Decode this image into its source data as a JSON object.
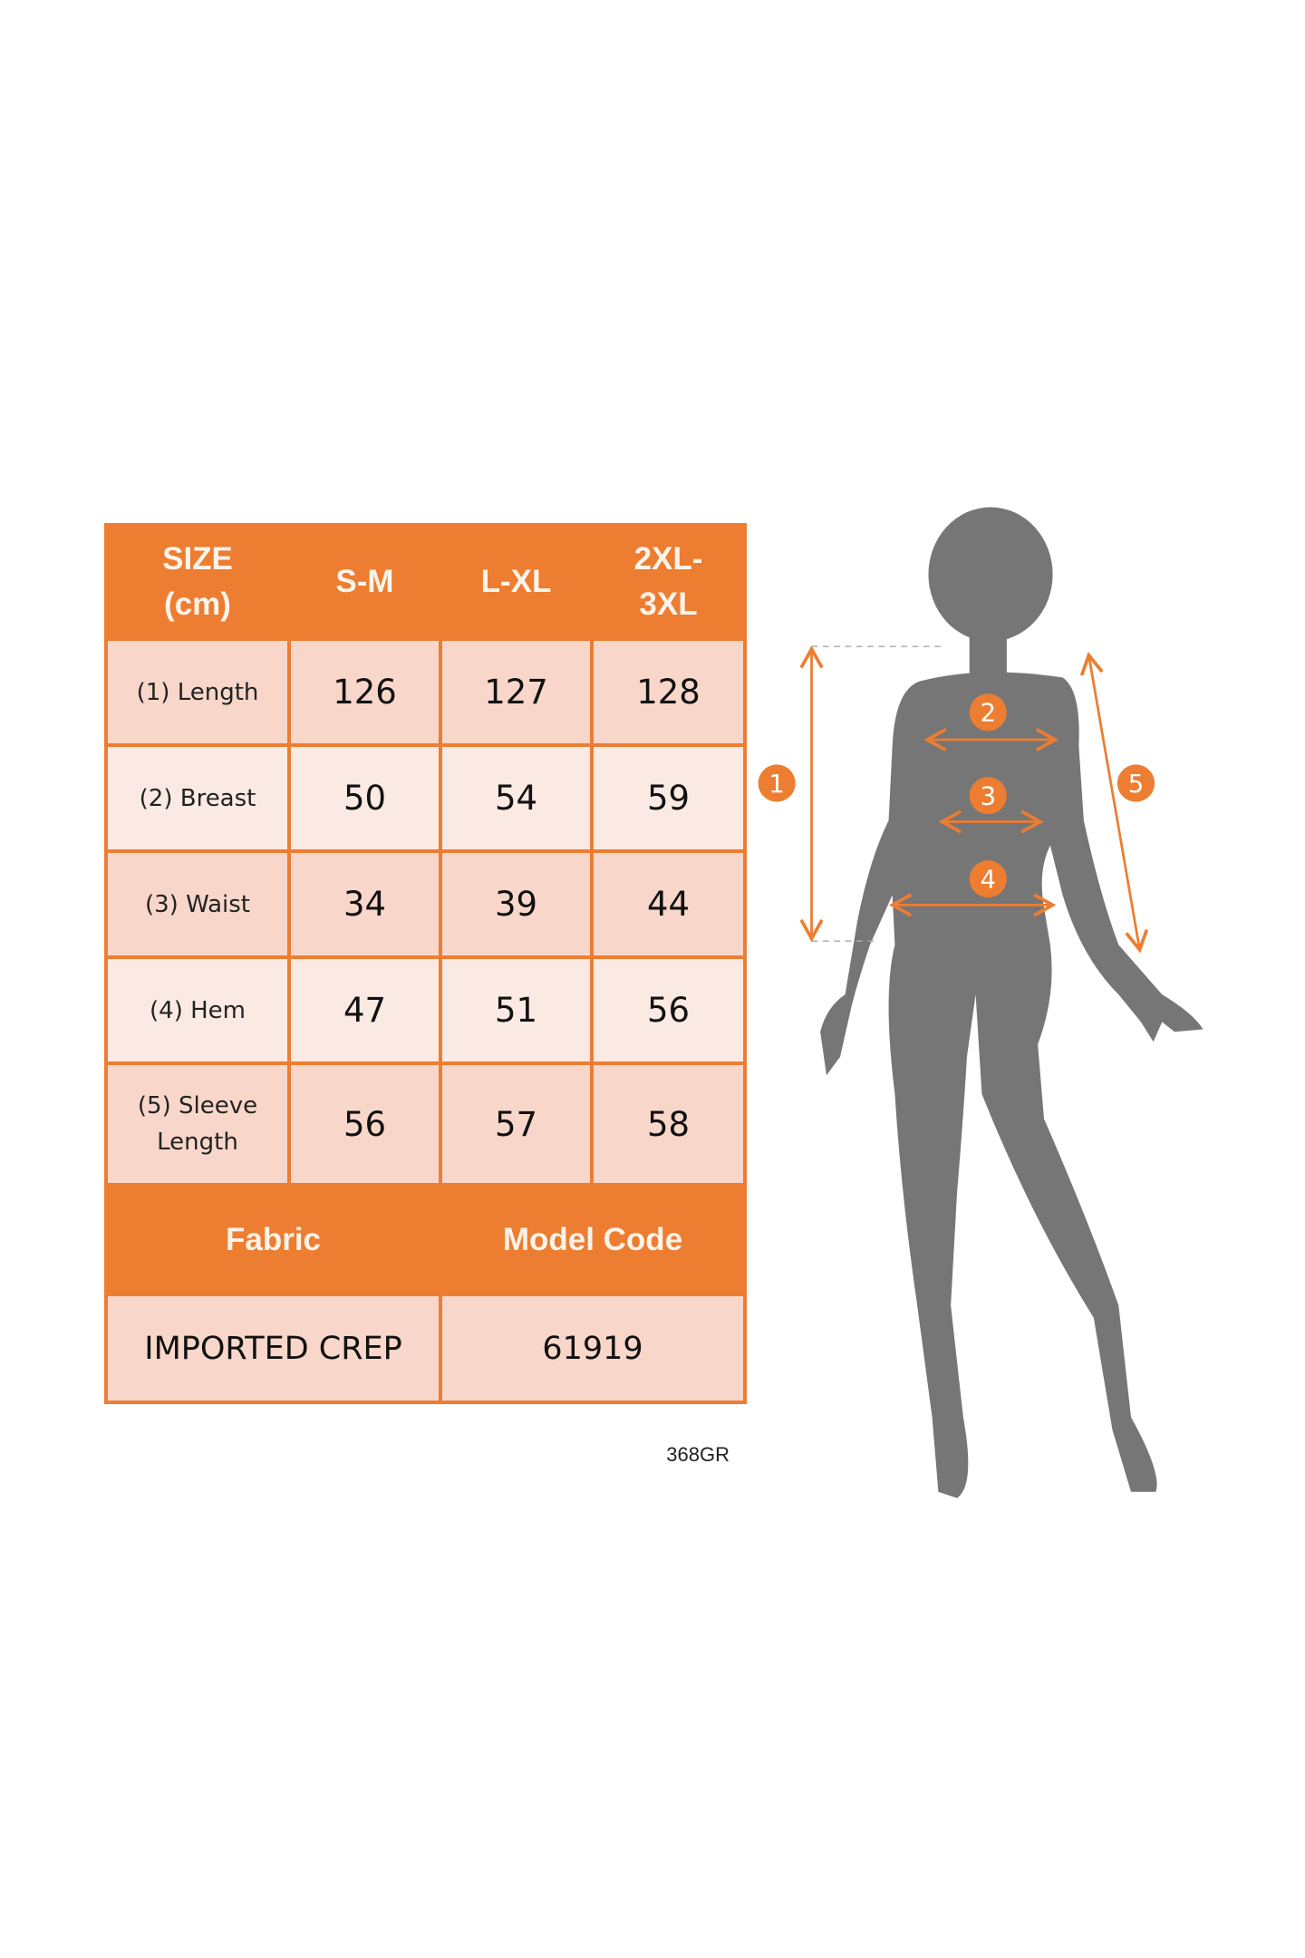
{
  "size_chart": {
    "header": [
      "SIZE\n(cm)",
      "S-M",
      "L-XL",
      "2XL-\n3XL"
    ],
    "header_lines": [
      [
        "SIZE",
        "(cm)"
      ],
      [
        "S-M"
      ],
      [
        "L-XL"
      ],
      [
        "2XL-",
        "3XL"
      ]
    ],
    "rows": [
      {
        "label": "(1) Length",
        "values": [
          "126",
          "127",
          "128"
        ]
      },
      {
        "label": "(2) Breast",
        "values": [
          "50",
          "54",
          "59"
        ]
      },
      {
        "label": "(3) Waist",
        "values": [
          "34",
          "39",
          "44"
        ]
      },
      {
        "label": "(4) Hem",
        "values": [
          "47",
          "51",
          "56"
        ]
      },
      {
        "label_lines": [
          "(5) Sleeve",
          "Length"
        ],
        "values": [
          "56",
          "57",
          "58"
        ]
      }
    ],
    "info_headers": [
      "Fabric",
      "Model Code"
    ],
    "info_values": [
      "IMPORTED CREP",
      "61919"
    ]
  },
  "product_code": "368GR",
  "figure": {
    "markers": [
      "1",
      "2",
      "3",
      "4",
      "5"
    ],
    "silhouette_color": "#767676",
    "accent_color": "#ED7D31"
  },
  "colors": {
    "header_bg": "#ED7D31",
    "cell_dark": "#F8D7CA",
    "cell_light": "#FBEAE3"
  }
}
